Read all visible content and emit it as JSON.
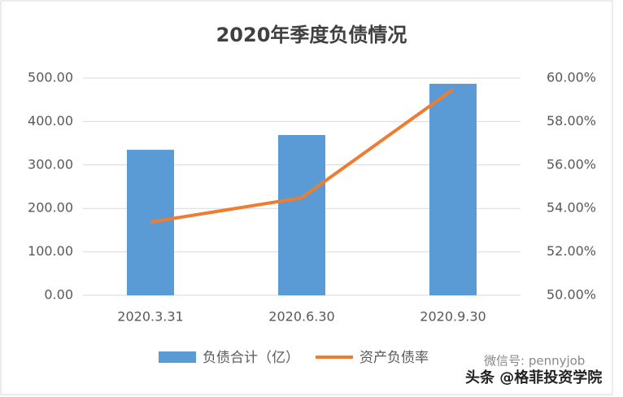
{
  "chart_data": {
    "type": "combo",
    "title": "2020年季度负债情况",
    "categories": [
      "2020.3.31",
      "2020.6.30",
      "2020.9.30"
    ],
    "series": [
      {
        "name": "负债合计（亿）",
        "type": "bar",
        "color": "#5b9bd5",
        "values": [
          335,
          369,
          487
        ]
      },
      {
        "name": "资产负债率",
        "type": "line",
        "axis": "y2",
        "color": "#ed7d31",
        "values": [
          53.37,
          54.49,
          59.48
        ]
      }
    ],
    "ylim": [
      0,
      500
    ],
    "yticks": [
      {
        "value": 0,
        "label": "0.00"
      },
      {
        "value": 100,
        "label": "100.00"
      },
      {
        "value": 200,
        "label": "200.00"
      },
      {
        "value": 300,
        "label": "300.00"
      },
      {
        "value": 400,
        "label": "400.00"
      },
      {
        "value": 500,
        "label": "500.00"
      }
    ],
    "y2lim": [
      50,
      60
    ],
    "y2ticks": [
      {
        "value": 50,
        "label": "50.00%"
      },
      {
        "value": 52,
        "label": "52.00%"
      },
      {
        "value": 54,
        "label": "54.00%"
      },
      {
        "value": 56,
        "label": "56.00%"
      },
      {
        "value": 58,
        "label": "58.00%"
      },
      {
        "value": 60,
        "label": "60.00%"
      }
    ],
    "grid": true,
    "annotations": [
      "微信号: pennyjob",
      "头条 @格菲投资学院"
    ]
  }
}
